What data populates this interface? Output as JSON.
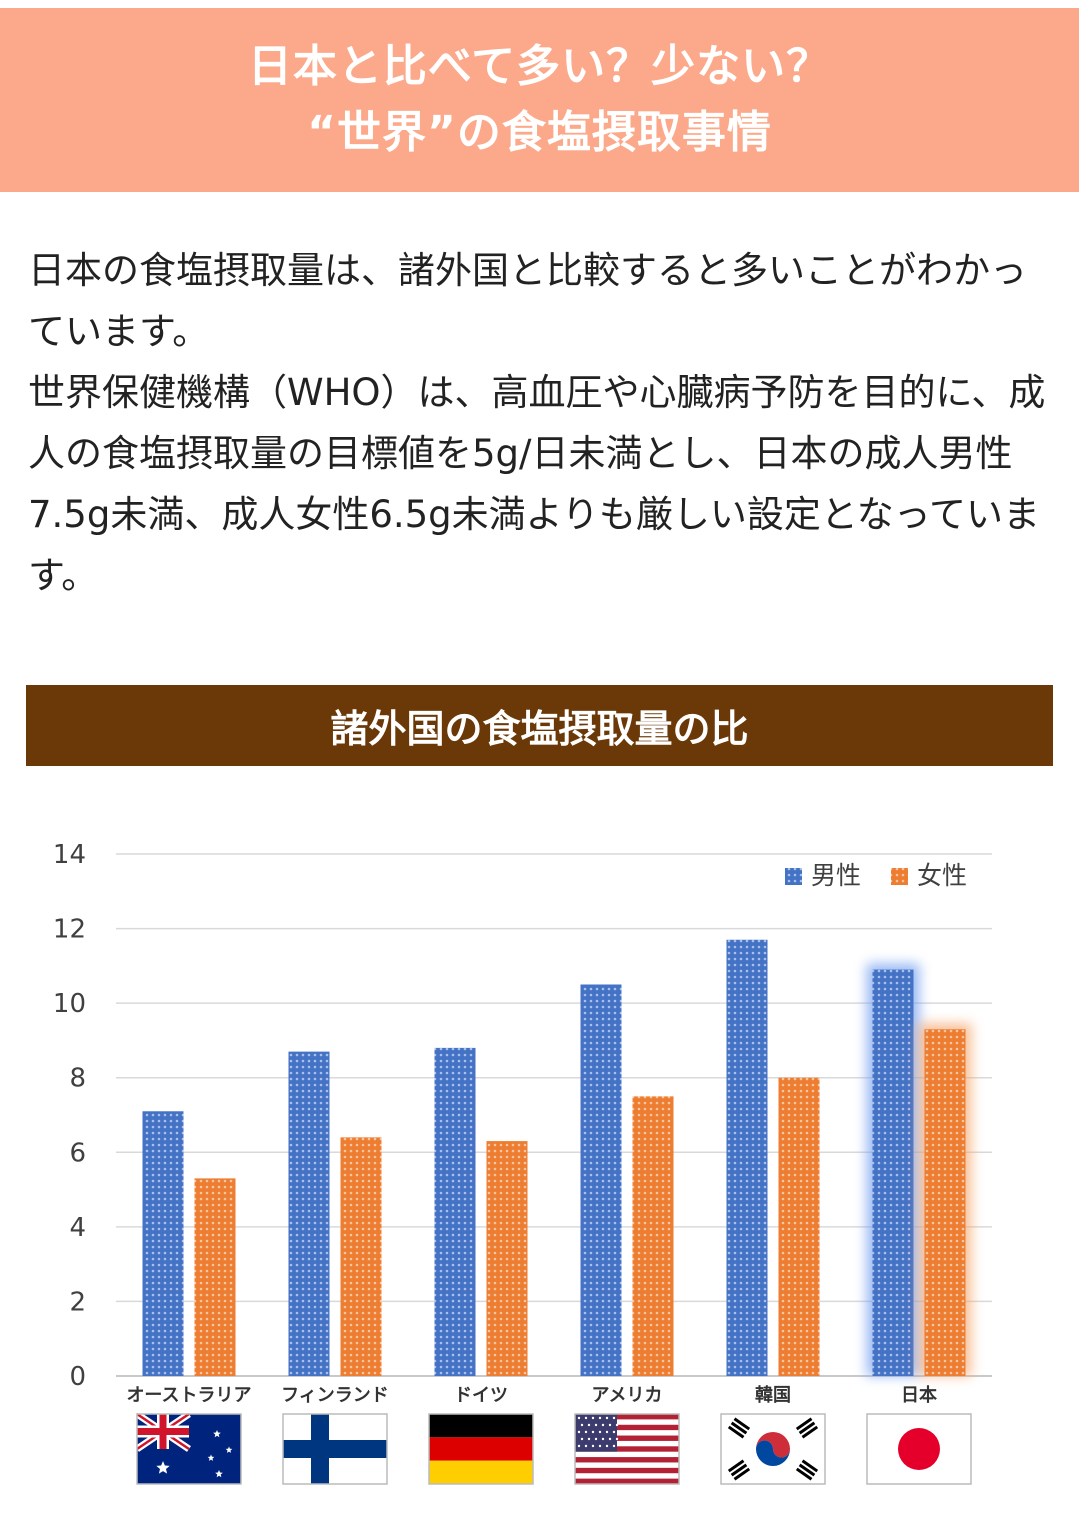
{
  "header": {
    "line1": "日本と比べて多い？少ない？",
    "line2": "“世界”の食塩摂取事情",
    "background": "#fba98a"
  },
  "body": {
    "paragraph1": "日本の食塩摂取量は、諸外国と比較すると多いことがわかっています。",
    "paragraph2": "世界保健機構（WHO）は、高血圧や心臓病予防を目的に、成人の食塩摂取量の目標値を5g/日未満とし、日本の成人男性7.5g未満、成人女性6.5g未満よりも厳しい設定となっています。"
  },
  "chart_banner": {
    "title": "諸外国の食塩摂取量の比",
    "background": "#6b3808"
  },
  "chart_data": {
    "type": "bar",
    "categories": [
      "オーストラリア",
      "フィンランド",
      "ドイツ",
      "アメリカ",
      "韓国",
      "日本"
    ],
    "series": [
      {
        "name": "男性",
        "values": [
          7.1,
          8.7,
          8.8,
          10.5,
          11.7,
          10.9
        ],
        "color": "#4472c4"
      },
      {
        "name": "女性",
        "values": [
          5.3,
          6.4,
          6.3,
          7.5,
          8.0,
          9.3
        ],
        "color": "#ed7d31"
      }
    ],
    "yticks": [
      0,
      2,
      4,
      6,
      8,
      10,
      12,
      14
    ],
    "ylim": [
      0,
      14
    ],
    "grid": true,
    "legend_position": "top-right",
    "highlight_category": "日本",
    "flags": [
      "australia-flag-icon",
      "finland-flag-icon",
      "germany-flag-icon",
      "usa-flag-icon",
      "korea-flag-icon",
      "japan-flag-icon"
    ]
  }
}
